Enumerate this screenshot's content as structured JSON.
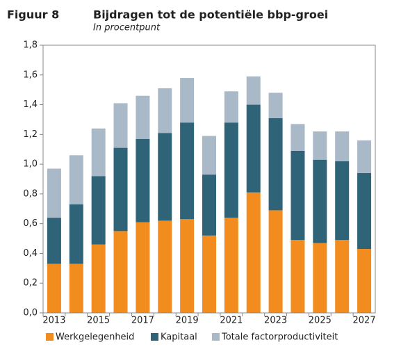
{
  "chart_data": {
    "type": "stacked_bar",
    "label": "Figuur 8",
    "title": "Bijdragen tot de potentiële bbp-groei",
    "subtitle": "In procentpunt",
    "categories": [
      "2013",
      null,
      "2015",
      null,
      "2017",
      null,
      "2019",
      null,
      "2021",
      null,
      "2023",
      null,
      "2025",
      null,
      "2027"
    ],
    "series": [
      {
        "name": "Werkgelegenheid",
        "color": "#f28c1e",
        "values": [
          0.33,
          0.33,
          0.46,
          0.55,
          0.61,
          0.62,
          0.63,
          0.52,
          0.64,
          0.81,
          0.69,
          0.49,
          0.47,
          0.49,
          0.43
        ]
      },
      {
        "name": "Kapitaal",
        "color": "#2e6378",
        "values": [
          0.31,
          0.4,
          0.46,
          0.56,
          0.56,
          0.59,
          0.65,
          0.41,
          0.64,
          0.59,
          0.62,
          0.6,
          0.56,
          0.53,
          0.51
        ]
      },
      {
        "name": "Totale factorproductiviteit",
        "color": "#a9b9c8",
        "values": [
          0.33,
          0.33,
          0.32,
          0.3,
          0.29,
          0.3,
          0.3,
          0.26,
          0.21,
          0.19,
          0.17,
          0.18,
          0.19,
          0.2,
          0.22
        ]
      }
    ],
    "ylim": [
      0,
      1.8
    ],
    "yticks": [
      {
        "value": 0,
        "label": "0,0"
      },
      {
        "value": 0.2,
        "label": "0,2"
      },
      {
        "value": 0.4,
        "label": "0,4"
      },
      {
        "value": 0.6,
        "label": "0,6"
      },
      {
        "value": 0.8,
        "label": "0,8"
      },
      {
        "value": 1.0,
        "label": "1,0"
      },
      {
        "value": 1.2,
        "label": "1,2"
      },
      {
        "value": 1.4,
        "label": "1,4"
      },
      {
        "value": 1.6,
        "label": "1,6"
      },
      {
        "value": 1.8,
        "label": "1,8"
      }
    ],
    "legend": "bottom"
  }
}
